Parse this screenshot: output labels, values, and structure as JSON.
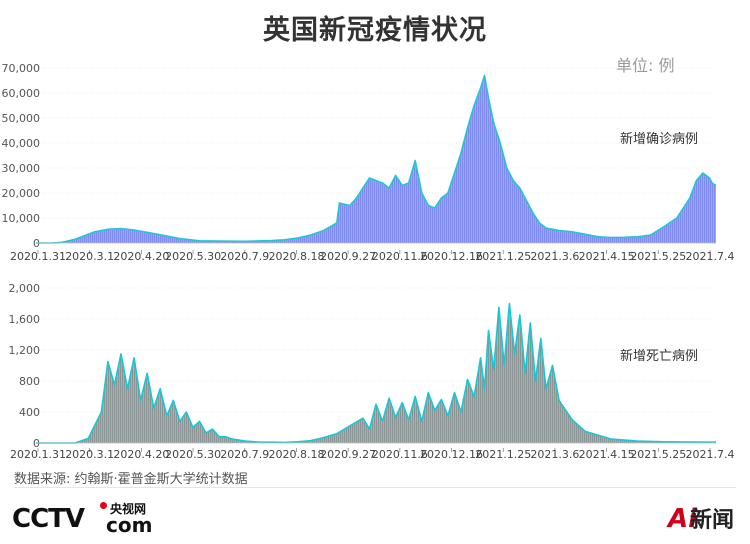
{
  "title": "英国新冠疫情状况",
  "unit": "单位: 例",
  "source": "数据来源: 约翰斯·霍普金斯大学统计数据",
  "logos": {
    "cctv_cn": "央视网",
    "cctv_main": "CCTV",
    "cctv_com": "com",
    "ai_mark": "Ai",
    "ai_text": "新闻"
  },
  "colors": {
    "cases_fill": "#8f9cf2",
    "cases_line": "#22c6d3",
    "deaths_fill": "#9aa3a4",
    "deaths_line": "#18c7d3",
    "axis": "#9a9a9a",
    "grid": "#d9d9d9"
  },
  "chart_data": [
    {
      "type": "area",
      "title": "新增确诊病例",
      "series_label": "新增确诊病例",
      "ylim": [
        0,
        70000
      ],
      "yticks": [
        0,
        10000,
        20000,
        30000,
        40000,
        50000,
        60000,
        70000
      ],
      "ytick_labels": [
        "0",
        "10,000",
        "20,000",
        "30,000",
        "40,000",
        "50,000",
        "60,000",
        "70,000"
      ],
      "xtick_labels": [
        "2020.1.31",
        "2020.3.1",
        "2020.4.20",
        "2020.5.30",
        "2020.7.9",
        "2020.8.18",
        "2020.9.27",
        "2020.11.6",
        "2020.12.16",
        "2021.1.25",
        "2021.3.6",
        "2021.4.15",
        "2021.5.25",
        "2021.7.4"
      ],
      "x": [
        0,
        12,
        20,
        30,
        45,
        55,
        65,
        75,
        90,
        110,
        125,
        140,
        160,
        180,
        190,
        200,
        210,
        220,
        230,
        232,
        240,
        245,
        250,
        255,
        260,
        265,
        270,
        275,
        280,
        285,
        290,
        295,
        300,
        305,
        310,
        315,
        320,
        325,
        330,
        335,
        340,
        343,
        346,
        350,
        355,
        360,
        365,
        370,
        375,
        380,
        385,
        390,
        395,
        400,
        410,
        420,
        430,
        440,
        450,
        460,
        470,
        480,
        490,
        495,
        500,
        505,
        510,
        515,
        517,
        520
      ],
      "values": [
        0,
        0,
        300,
        1500,
        4500,
        5500,
        5800,
        5200,
        3800,
        1800,
        900,
        800,
        700,
        1000,
        1300,
        2000,
        3200,
        5000,
        8000,
        16000,
        15000,
        18000,
        22000,
        26000,
        25000,
        24000,
        22000,
        27000,
        23000,
        24000,
        33000,
        20000,
        15000,
        14000,
        18000,
        20000,
        28000,
        36000,
        46000,
        55000,
        62000,
        67000,
        58000,
        48000,
        40000,
        30000,
        25000,
        22000,
        17000,
        12000,
        8000,
        6000,
        5500,
        5000,
        4500,
        3500,
        2500,
        2200,
        2300,
        2500,
        3200,
        6500,
        10000,
        14000,
        18000,
        25000,
        28000,
        26000,
        24000,
        23000
      ]
    },
    {
      "type": "area",
      "title": "新增死亡病例",
      "series_label": "新增死亡病例",
      "ylim": [
        0,
        2000
      ],
      "yticks": [
        0,
        400,
        800,
        1200,
        1600,
        2000
      ],
      "ytick_labels": [
        "0",
        "400",
        "800",
        "1,200",
        "1,600",
        "2,000"
      ],
      "xtick_labels": [
        "2020.1.31",
        "2020.3.1",
        "2020.4.20",
        "2020.5.30",
        "2020.7.9",
        "2020.8.18",
        "2020.9.27",
        "2020.11.6",
        "2020.12.16",
        "2021.1.25",
        "2021.3.6",
        "2021.4.15",
        "2021.5.25",
        "2021.7.4"
      ],
      "x": [
        0,
        30,
        40,
        50,
        55,
        60,
        65,
        70,
        75,
        80,
        85,
        90,
        95,
        100,
        105,
        110,
        115,
        120,
        125,
        130,
        135,
        140,
        145,
        150,
        160,
        170,
        180,
        190,
        200,
        210,
        220,
        230,
        240,
        250,
        255,
        260,
        265,
        270,
        275,
        280,
        285,
        290,
        295,
        300,
        305,
        310,
        315,
        320,
        325,
        330,
        335,
        340,
        343,
        346,
        350,
        354,
        358,
        362,
        366,
        370,
        374,
        378,
        382,
        386,
        390,
        395,
        400,
        410,
        420,
        440,
        460,
        480,
        500,
        520
      ],
      "values": [
        0,
        0,
        60,
        400,
        1050,
        750,
        1150,
        700,
        1100,
        550,
        900,
        450,
        700,
        350,
        550,
        280,
        400,
        200,
        280,
        130,
        180,
        80,
        80,
        50,
        25,
        12,
        10,
        8,
        15,
        30,
        70,
        120,
        220,
        320,
        180,
        500,
        280,
        580,
        330,
        520,
        300,
        600,
        280,
        650,
        420,
        560,
        350,
        650,
        400,
        820,
        600,
        1100,
        700,
        1450,
        950,
        1750,
        1000,
        1800,
        1150,
        1650,
        900,
        1550,
        800,
        1350,
        700,
        1000,
        550,
        300,
        150,
        50,
        25,
        15,
        12,
        10
      ]
    }
  ]
}
